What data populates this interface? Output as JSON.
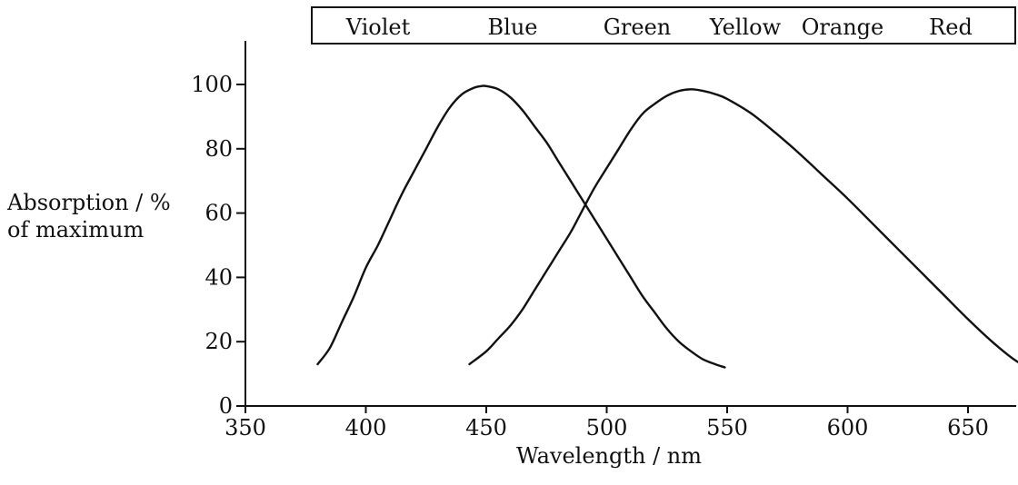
{
  "chart_data": {
    "type": "line",
    "title": "",
    "xlabel": "Wavelength / nm",
    "ylabel": [
      "Absorption / %",
      "of maximum"
    ],
    "xlim": [
      350,
      675
    ],
    "ylim": [
      0,
      110
    ],
    "xticks": [
      350,
      400,
      450,
      500,
      550,
      600,
      650
    ],
    "yticks": [
      0,
      20,
      40,
      60,
      80,
      100
    ],
    "color_bands": [
      "Violet",
      "Blue",
      "Green",
      "Yellow",
      "Orange",
      "Red"
    ],
    "grid": false,
    "series": [
      {
        "color": "#111111",
        "x": [
          380,
          385,
          390,
          395,
          400,
          405,
          410,
          415,
          420,
          425,
          430,
          435,
          440,
          445,
          448,
          450,
          455,
          460,
          465,
          470,
          475,
          480,
          485,
          490,
          495,
          500,
          505,
          510,
          515,
          520,
          525,
          530,
          535,
          540,
          545,
          549
        ],
        "y": [
          13,
          18,
          26,
          34,
          43,
          50,
          58,
          66,
          73,
          80,
          87,
          93,
          97,
          99,
          99.5,
          99.5,
          98.5,
          96,
          92,
          87,
          82,
          76,
          70,
          64,
          58,
          52,
          46,
          40,
          34,
          29,
          24,
          20,
          17,
          14.5,
          13,
          12
        ]
      },
      {
        "color": "#111111",
        "x": [
          443,
          450,
          455,
          460,
          465,
          470,
          475,
          480,
          485,
          490,
          495,
          500,
          505,
          510,
          515,
          520,
          525,
          530,
          535,
          540,
          545,
          550,
          560,
          570,
          580,
          590,
          600,
          610,
          620,
          630,
          640,
          650,
          660,
          670,
          675
        ],
        "y": [
          13,
          17,
          21,
          25,
          30,
          36,
          42,
          48,
          54,
          61,
          68,
          74,
          80,
          86,
          91,
          94,
          96.5,
          98,
          98.5,
          98,
          97,
          95.5,
          91,
          85,
          78.5,
          71.5,
          64.5,
          57,
          49.5,
          42,
          34.5,
          27,
          20,
          14,
          12.5
        ]
      }
    ]
  }
}
